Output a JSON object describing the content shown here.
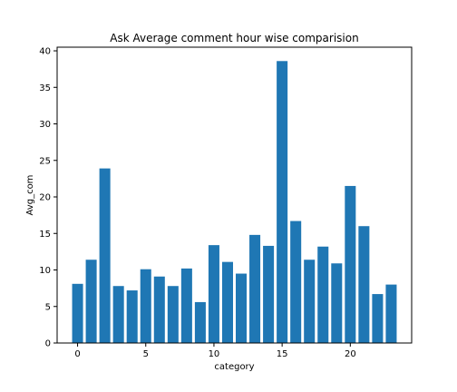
{
  "chart_data": {
    "type": "bar",
    "title": "Ask Average comment hour wise comparision",
    "xlabel": "category",
    "ylabel": "Avg_com",
    "categories": [
      0,
      1,
      2,
      3,
      4,
      5,
      6,
      7,
      8,
      9,
      10,
      11,
      12,
      13,
      14,
      15,
      16,
      17,
      18,
      19,
      20,
      21,
      22,
      23
    ],
    "values": [
      8.1,
      11.4,
      23.9,
      7.8,
      7.2,
      10.1,
      9.1,
      7.8,
      10.2,
      5.6,
      13.4,
      11.1,
      9.5,
      14.8,
      13.3,
      38.6,
      16.7,
      11.4,
      13.2,
      10.9,
      21.5,
      16.0,
      6.7,
      8.0
    ],
    "xlim": [
      -1.5,
      24.5
    ],
    "ylim": [
      0,
      40.5
    ],
    "xticks": [
      0,
      5,
      10,
      15,
      20
    ],
    "yticks": [
      0,
      5,
      10,
      15,
      20,
      25,
      30,
      35,
      40
    ],
    "bar_color": "#1f77b4",
    "grid": false
  }
}
